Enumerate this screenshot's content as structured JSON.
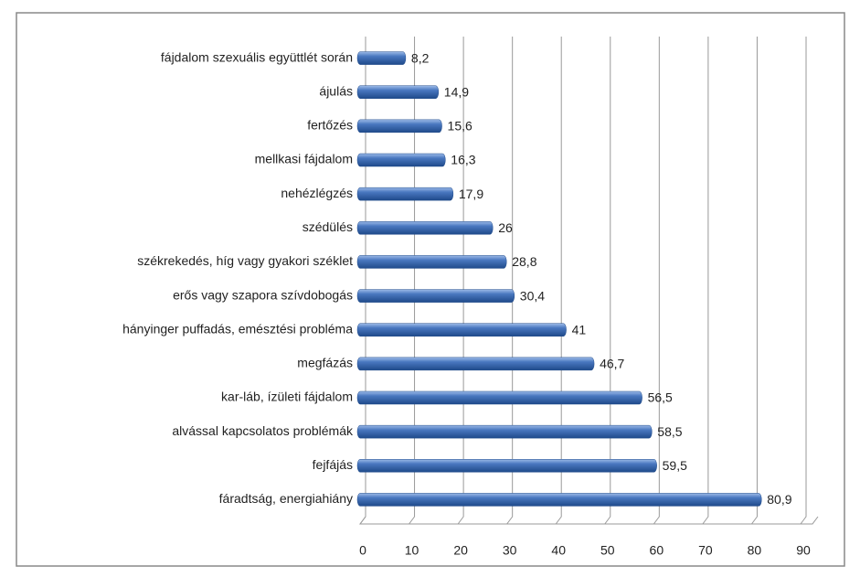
{
  "chart_data": {
    "type": "bar",
    "orientation": "horizontal",
    "color": "#4a78c0",
    "categories": [
      "fájdalom szexuális együttlét során",
      "ájulás",
      "fertőzés",
      "mellkasi fájdalom",
      "nehézlégzés",
      "szédülés",
      "székrekedés, híg vagy gyakori széklet",
      "erős vagy szapora szívdobogás",
      "hányinger puffadás, emésztési probléma",
      "megfázás",
      "kar-láb, ízületi fájdalom",
      "alvással kapcsolatos problémák",
      "fejfájás",
      "fáradtság, energiahiány"
    ],
    "values": [
      8.2,
      14.9,
      15.6,
      16.3,
      17.9,
      26,
      28.8,
      30.4,
      41,
      46.7,
      56.5,
      58.5,
      59.5,
      80.9
    ],
    "value_labels": [
      "8,2",
      "14,9",
      "15,6",
      "16,3",
      "17,9",
      "26",
      "28,8",
      "30,4",
      "41",
      "46,7",
      "56,5",
      "58,5",
      "59,5",
      "80,9"
    ],
    "xlim": [
      0,
      90
    ],
    "xticks": [
      0,
      10,
      20,
      30,
      40,
      50,
      60,
      70,
      80,
      90
    ],
    "grid": true
  }
}
